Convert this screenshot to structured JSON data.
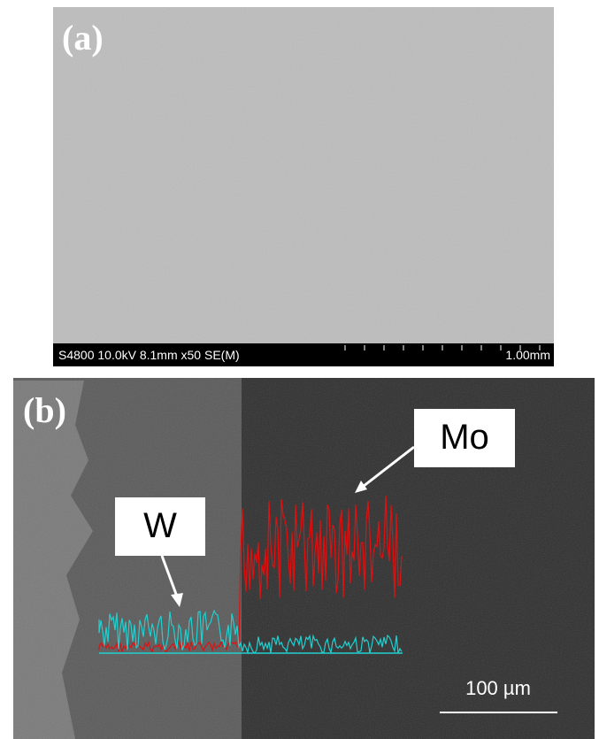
{
  "panels": [
    {
      "label": "(a)",
      "info_bar": {
        "text": "S4800 10.0kV 8.1mm x50 SE(M)",
        "scale": "1.00mm"
      }
    },
    {
      "label": "(b)",
      "callouts": [
        "W",
        "Mo"
      ],
      "scale_bar": "100 µm"
    }
  ]
}
